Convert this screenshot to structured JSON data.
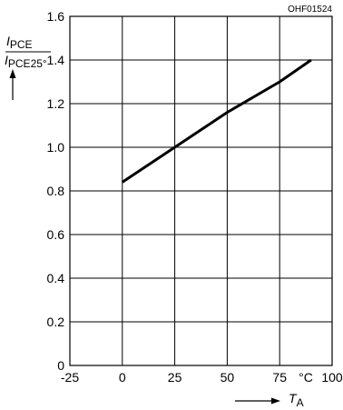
{
  "figure_code": "OHF01524",
  "chart_data": {
    "type": "line",
    "xlabel": {
      "symbol": "T",
      "subscript": "A"
    },
    "ylabel": {
      "numerator": {
        "symbol": "I",
        "subscript": "PCE"
      },
      "denominator": {
        "symbol": "I",
        "subscript": "PCE25°"
      }
    },
    "x_unit": "°C",
    "xlim": [
      -25,
      100
    ],
    "ylim": [
      0,
      1.6
    ],
    "x_ticks": [
      "-25",
      "0",
      "25",
      "50",
      "75",
      "100"
    ],
    "y_ticks": [
      "0",
      "0.2",
      "0.4",
      "0.6",
      "0.8",
      "1.0",
      "1.2",
      "1.4",
      "1.6"
    ],
    "grid": true,
    "series": [
      {
        "x": [
          0,
          25,
          50,
          75,
          90
        ],
        "y": [
          0.84,
          1.0,
          1.16,
          1.3,
          1.4
        ]
      }
    ]
  }
}
